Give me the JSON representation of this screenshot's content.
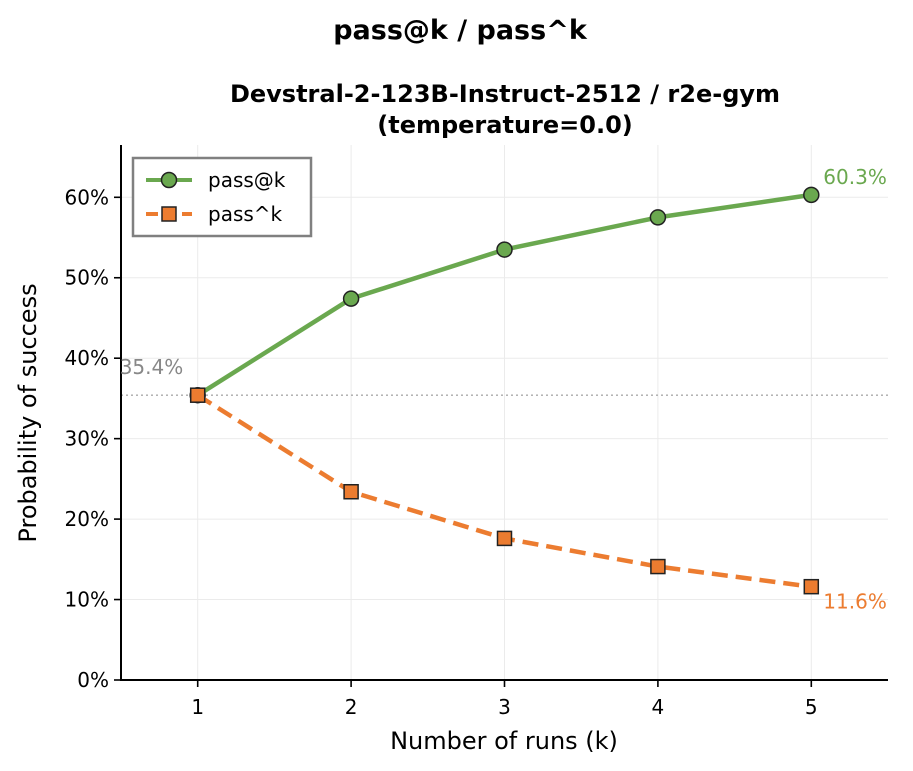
{
  "chart_data": {
    "type": "line",
    "suptitle": "pass@k / pass^k",
    "title_line1": "Devstral-2-123B-Instruct-2512 / r2e-gym",
    "title_line2": "(temperature=0.0)",
    "xlabel": "Number of runs (k)",
    "ylabel": "Probability of success",
    "x": [
      1,
      2,
      3,
      4,
      5
    ],
    "x_tick_labels": [
      "1",
      "2",
      "3",
      "4",
      "5"
    ],
    "xlim": [
      0.5,
      5.5
    ],
    "ylim": [
      0,
      66.5
    ],
    "y_ticks": [
      0,
      10,
      20,
      30,
      40,
      50,
      60
    ],
    "y_tick_labels": [
      "0%",
      "10%",
      "20%",
      "30%",
      "40%",
      "50%",
      "60%"
    ],
    "grid": true,
    "legend_position": "top-left",
    "series": [
      {
        "name": "pass@k",
        "values": [
          35.4,
          47.4,
          53.5,
          57.5,
          60.3
        ],
        "color": "#6aa84f",
        "marker": "circle",
        "linestyle": "solid"
      },
      {
        "name": "pass^k",
        "values": [
          35.4,
          23.4,
          17.6,
          14.1,
          11.6
        ],
        "color": "#ec7c30",
        "marker": "square",
        "linestyle": "dashed"
      }
    ],
    "baseline": {
      "value": 35.4,
      "color": "#aaaaaa"
    },
    "annotations": [
      {
        "text": "35.4%",
        "x": 1,
        "y": 35.4,
        "color": "#888888",
        "anchor": "above-left"
      },
      {
        "text": "60.3%",
        "x": 5,
        "y": 60.3,
        "color": "#6aa84f",
        "anchor": "above-right"
      },
      {
        "text": "11.6%",
        "x": 5,
        "y": 11.6,
        "color": "#ec7c30",
        "anchor": "below-right"
      }
    ]
  }
}
